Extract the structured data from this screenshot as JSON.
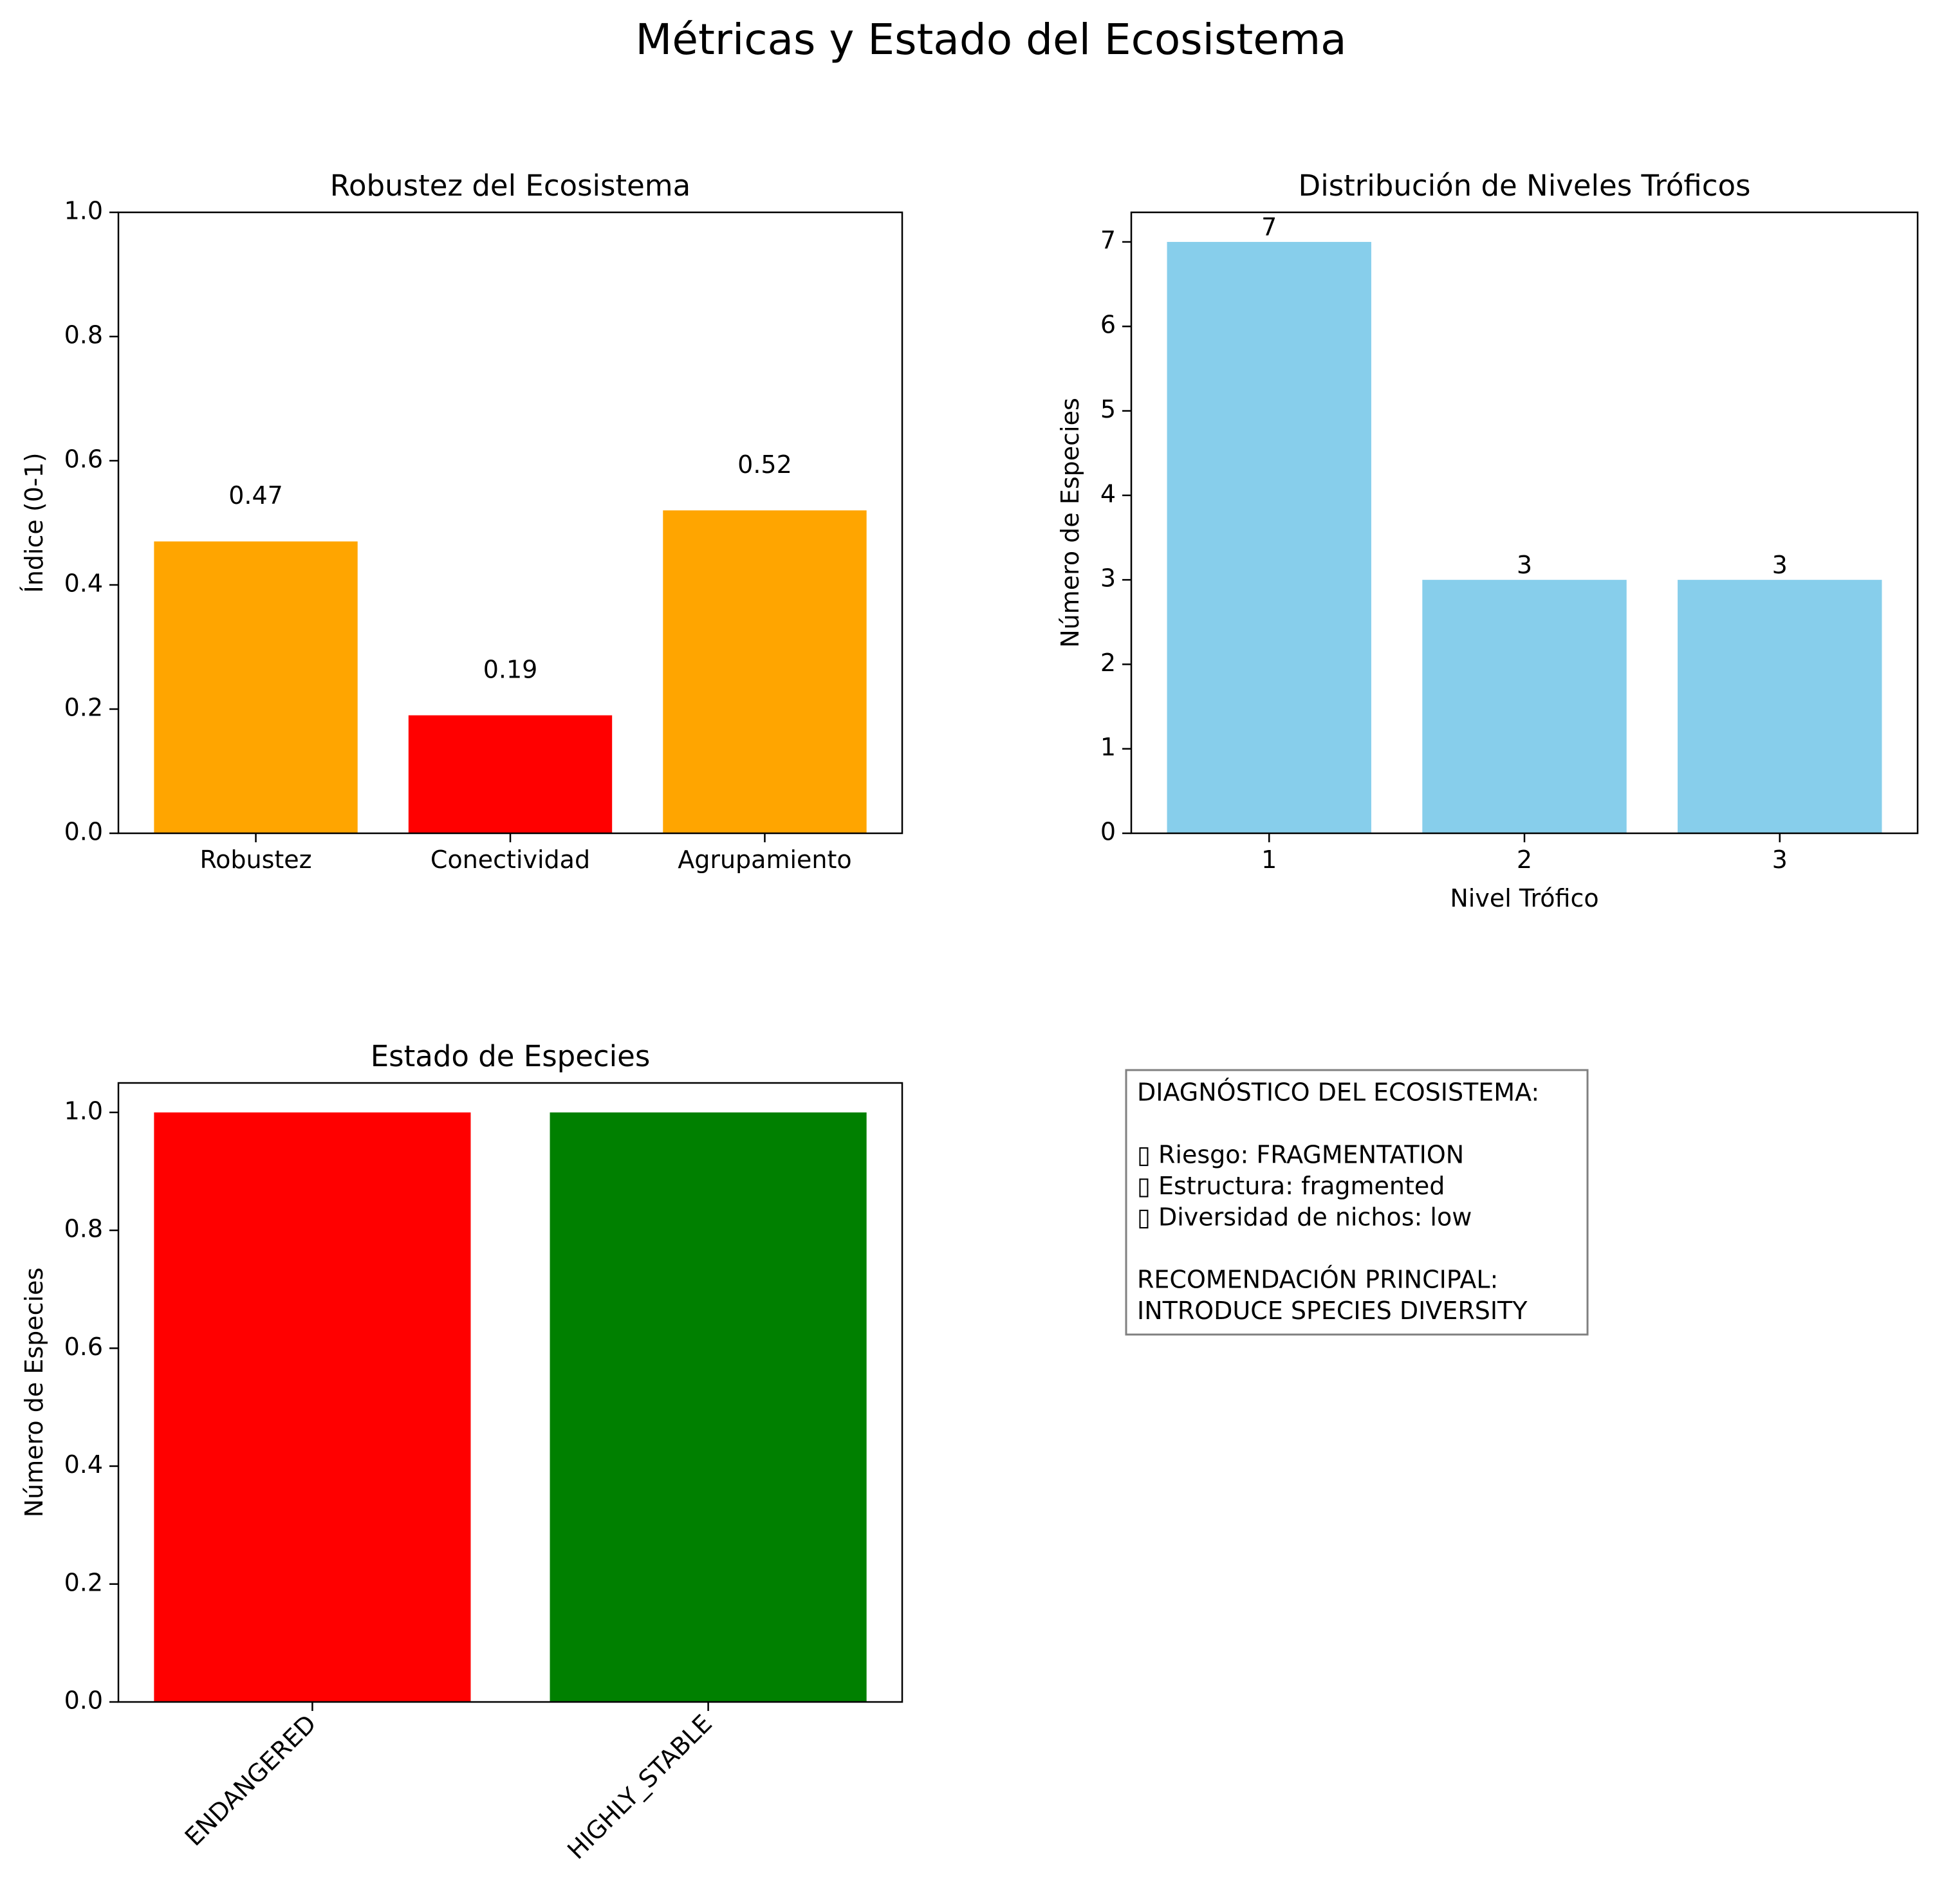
{
  "figure": {
    "title": "Métricas y Estado del Ecosistema"
  },
  "colors": {
    "orange": "#ffa500",
    "red": "#ff0000",
    "skyblue": "#87ceeb",
    "green": "#008000",
    "box_edge": "#808080"
  },
  "chart_data": [
    {
      "type": "bar",
      "title": "Robustez del Ecosistema",
      "xlabel": "",
      "ylabel": "Índice (0-1)",
      "categories": [
        "Robustez",
        "Conectividad",
        "Agrupamiento"
      ],
      "values": [
        0.47,
        0.19,
        0.52
      ],
      "value_labels": [
        "0.47",
        "0.19",
        "0.52"
      ],
      "bar_colors": [
        "orange",
        "red",
        "orange"
      ],
      "ylim": [
        0,
        1.0
      ],
      "yticks": [
        "0.0",
        "0.2",
        "0.4",
        "0.6",
        "0.8",
        "1.0"
      ],
      "grid": false
    },
    {
      "type": "bar",
      "title": "Distribución de Niveles Tróficos",
      "xlabel": "Nivel Trófico",
      "ylabel": "Número de Especies",
      "categories": [
        "1",
        "2",
        "3"
      ],
      "values": [
        7,
        3,
        3
      ],
      "value_labels": [
        "7",
        "3",
        "3"
      ],
      "bar_colors": [
        "skyblue",
        "skyblue",
        "skyblue"
      ],
      "ylim": [
        0,
        7.35
      ],
      "yticks": [
        "0",
        "1",
        "2",
        "3",
        "4",
        "5",
        "6",
        "7"
      ],
      "grid": false
    },
    {
      "type": "bar",
      "title": "Estado de Especies",
      "xlabel": "",
      "ylabel": "Número de Especies",
      "categories": [
        "ENDANGERED",
        "HIGHLY_STABLE"
      ],
      "values": [
        1,
        1
      ],
      "bar_colors": [
        "red",
        "green"
      ],
      "ylim": [
        0,
        1.05
      ],
      "yticks": [
        "0.0",
        "0.2",
        "0.4",
        "0.6",
        "0.8",
        "1.0"
      ],
      "grid": false
    }
  ],
  "diagnosis": {
    "lines": [
      "DIAGNÓSTICO DEL ECOSISTEMA:",
      "",
      "▯ Riesgo: FRAGMENTATION",
      "▯ Estructura: fragmented",
      "▯ Diversidad de nichos: low",
      "",
      "RECOMENDACIÓN PRINCIPAL:",
      "INTRODUCE SPECIES DIVERSITY"
    ]
  }
}
